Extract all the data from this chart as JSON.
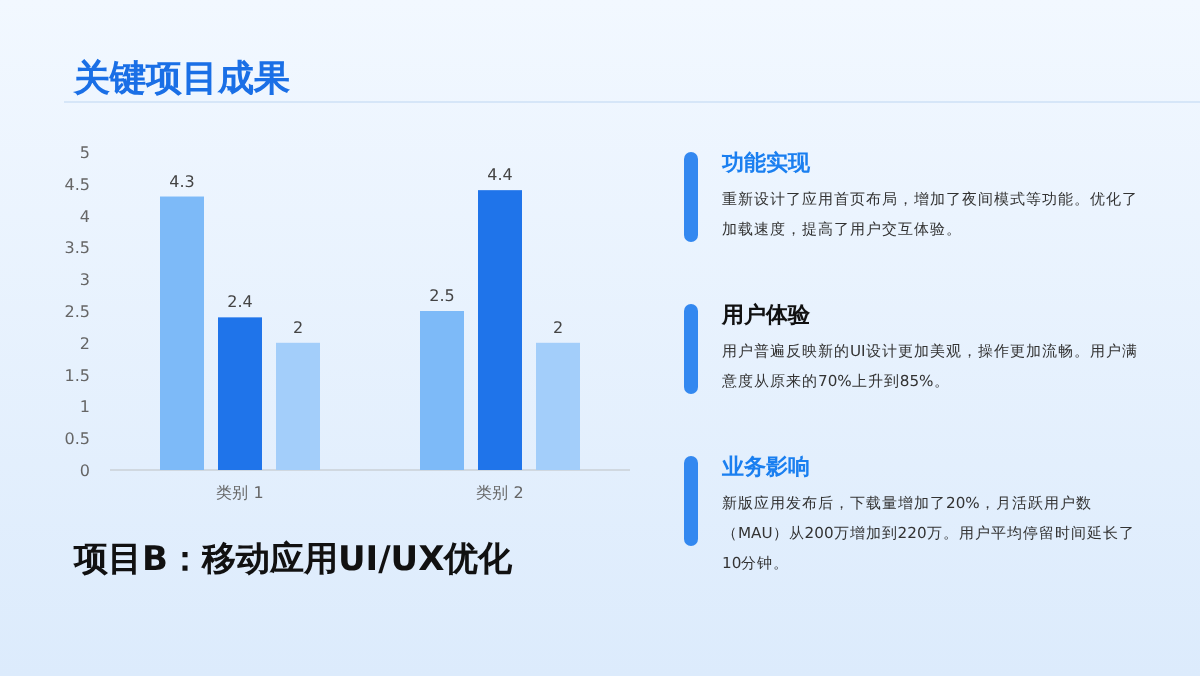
{
  "chart_data": {
    "type": "bar",
    "title": "关键项目成果",
    "subtitle": "项目B：移动应用UI/UX优化",
    "categories": [
      "类别 1",
      "类别 2"
    ],
    "series": [
      {
        "color": "#7dbaf8",
        "values": [
          4.3,
          2.5
        ]
      },
      {
        "color": "#1f74ea",
        "values": [
          2.4,
          4.4
        ]
      },
      {
        "color": "#a3cefa",
        "values": [
          2,
          2
        ]
      }
    ],
    "ylim": [
      0,
      5
    ],
    "yticks": [
      0,
      0.5,
      1,
      1.5,
      2,
      2.5,
      3,
      3.5,
      4,
      4.5,
      5
    ],
    "data_labels": true,
    "annotations": [
      "功能实现",
      "重新设计了应用首页布局，增加了夜间模式等功能。优化了加载速度，提高了用户交互体验。",
      "用户体验",
      "用户普遍反映新的UI设计更加美观，操作更加流畅。用户满意度从原来的70%上升到85%。",
      "业务影响",
      "新版应用发布后，下载量增加了20%，月活跃用户数（MAU）从200万增加到220万。用户平均停留时间延长了10分钟。"
    ]
  }
}
